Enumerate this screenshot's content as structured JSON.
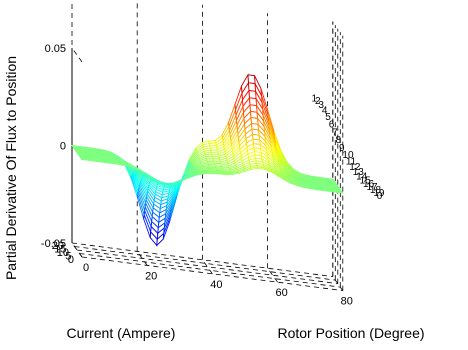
{
  "chart_data": {
    "type": "surface",
    "title": "",
    "xlabel": "Rotor Position (Degree)",
    "ylabel": "Current (Ampere)",
    "zlabel": "Partial Derivative Of Flux to Position",
    "x_ticks": [
      "0",
      "20",
      "40",
      "60",
      "80"
    ],
    "y_ticks": [
      "0",
      "5",
      "10",
      "15",
      "20"
    ],
    "z_ticks": [
      "-0.05",
      "0",
      "0.05"
    ],
    "xlim": [
      0,
      80
    ],
    "ylim": [
      0,
      20
    ],
    "zlim": [
      -0.05,
      0.05
    ],
    "grid": true,
    "colormap": "jet",
    "surface_function": "dPsi/dtheta(theta, i): ~0 for theta < 20 and theta > 70; negative dip (down to about -0.045 at i=20) near theta 20-35; rising to a positive peak (about +0.048 at i=20) near theta 50-62; magnitude grows with current i",
    "sampled_points": [
      {
        "x": 0,
        "y": 20,
        "z": 0.0
      },
      {
        "x": 25,
        "y": 20,
        "z": -0.045
      },
      {
        "x": 40,
        "y": 20,
        "z": 0.005
      },
      {
        "x": 55,
        "y": 20,
        "z": 0.048
      },
      {
        "x": 70,
        "y": 20,
        "z": 0.0
      },
      {
        "x": 80,
        "y": 20,
        "z": 0.0
      },
      {
        "x": 55,
        "y": 10,
        "z": 0.03
      },
      {
        "x": 25,
        "y": 10,
        "z": -0.025
      },
      {
        "x": 55,
        "y": 0,
        "z": 0.0
      }
    ],
    "contour_labels": [
      "1",
      "2",
      "3",
      "4",
      "5",
      "6",
      "7",
      "8",
      "9",
      "10",
      "11",
      "12",
      "13",
      "14",
      "15",
      "16",
      "17",
      "18",
      "19",
      "0"
    ]
  }
}
